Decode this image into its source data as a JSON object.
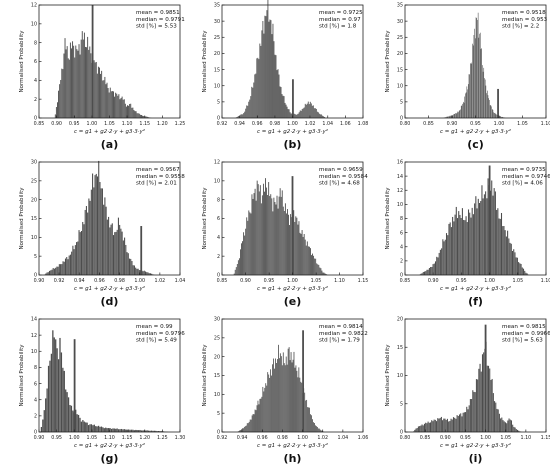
{
  "chart_data": [
    {
      "panel": "(a)",
      "type": "bar",
      "xlabel": "c = g1 + g2·2·y + g3·3·y²",
      "ylabel": "Normalised Probability",
      "xlim": [
        0.85,
        1.25
      ],
      "ylim": [
        0,
        12
      ],
      "xticks": [
        "0.85",
        "0.90",
        "0.95",
        "1.00",
        "1.05",
        "1.10",
        "1.15",
        "1.20",
        "1.25"
      ],
      "yticks": [
        "0",
        "2",
        "4",
        "6",
        "8",
        "10",
        "12"
      ],
      "stats": [
        "mean = 0.9851",
        "median = 0.9791",
        "std [%] = 5.53"
      ],
      "spike": {
        "x": 1.002,
        "y": 12
      },
      "profile": [
        [
          0.895,
          0
        ],
        [
          0.905,
          2.5
        ],
        [
          0.915,
          5
        ],
        [
          0.925,
          8
        ],
        [
          0.935,
          6.5
        ],
        [
          0.945,
          8
        ],
        [
          0.955,
          7
        ],
        [
          0.965,
          7.5
        ],
        [
          0.975,
          8.8
        ],
        [
          0.985,
          8
        ],
        [
          0.995,
          7.2
        ],
        [
          1.005,
          6.2
        ],
        [
          1.015,
          5.5
        ],
        [
          1.03,
          4.5
        ],
        [
          1.05,
          3
        ],
        [
          1.07,
          2.5
        ],
        [
          1.09,
          2
        ],
        [
          1.1,
          1.2
        ],
        [
          1.11,
          1.5
        ],
        [
          1.12,
          0.8
        ],
        [
          1.14,
          0.3
        ],
        [
          1.16,
          0.1
        ],
        [
          1.17,
          0
        ]
      ]
    },
    {
      "panel": "(b)",
      "type": "bar",
      "xlabel": "c = g1 + g2·2·y + g3·3·y²",
      "ylabel": "Normalised Probability",
      "xlim": [
        0.92,
        1.08
      ],
      "ylim": [
        0,
        35
      ],
      "xticks": [
        "0.92",
        "0.94",
        "0.96",
        "0.98",
        "1.00",
        "1.02",
        "1.04",
        "1.06",
        "1.08"
      ],
      "yticks": [
        "0",
        "5",
        "10",
        "15",
        "20",
        "25",
        "30",
        "35"
      ],
      "stats": [
        "mean = 0.9725",
        "median = 0.97",
        "std [%] = 1.8"
      ],
      "spike": {
        "x": 1.0005,
        "y": 12
      },
      "profile": [
        [
          0.935,
          0
        ],
        [
          0.945,
          1.5
        ],
        [
          0.952,
          6
        ],
        [
          0.958,
          14
        ],
        [
          0.963,
          22
        ],
        [
          0.968,
          30
        ],
        [
          0.971,
          34
        ],
        [
          0.975,
          31
        ],
        [
          0.979,
          24
        ],
        [
          0.983,
          15
        ],
        [
          0.988,
          8
        ],
        [
          0.993,
          4
        ],
        [
          0.998,
          1.5
        ],
        [
          1.005,
          1
        ],
        [
          1.012,
          3
        ],
        [
          1.018,
          5
        ],
        [
          1.023,
          4
        ],
        [
          1.03,
          1.5
        ],
        [
          1.038,
          0
        ]
      ]
    },
    {
      "panel": "(c)",
      "type": "bar",
      "xlabel": "c = g1 + g2·2·y + g3·3·y²",
      "ylabel": "Normalised Probability",
      "xlim": [
        0.8,
        1.1
      ],
      "ylim": [
        0,
        35
      ],
      "xticks": [
        "0.80",
        "0.85",
        "0.90",
        "0.95",
        "1.00",
        "1.05",
        "1.10"
      ],
      "yticks": [
        "0",
        "5",
        "10",
        "15",
        "20",
        "25",
        "30",
        "35"
      ],
      "stats": [
        "mean = 0.9518",
        "median = 0.953",
        "std [%] = 2.2"
      ],
      "spike": {
        "x": 0.998,
        "y": 9
      },
      "profile": [
        [
          0.88,
          0
        ],
        [
          0.9,
          0.8
        ],
        [
          0.915,
          2
        ],
        [
          0.925,
          5
        ],
        [
          0.935,
          11
        ],
        [
          0.943,
          20
        ],
        [
          0.95,
          29
        ],
        [
          0.955,
          31
        ],
        [
          0.96,
          25
        ],
        [
          0.965,
          17
        ],
        [
          0.972,
          10
        ],
        [
          0.98,
          5
        ],
        [
          0.988,
          2
        ],
        [
          0.995,
          1
        ],
        [
          1.005,
          0.4
        ],
        [
          1.015,
          0
        ]
      ]
    },
    {
      "panel": "(d)",
      "type": "bar",
      "xlabel": "c = g1 + g2·2·y + g3·3·y²",
      "ylabel": "Normalised Probability",
      "xlim": [
        0.9,
        1.04
      ],
      "ylim": [
        0,
        30
      ],
      "xticks": [
        "0.90",
        "0.92",
        "0.94",
        "0.96",
        "0.98",
        "1.00",
        "1.02",
        "1.04"
      ],
      "yticks": [
        "0",
        "5",
        "10",
        "15",
        "20",
        "25",
        "30"
      ],
      "stats": [
        "mean = 0.9567",
        "median = 0.9558",
        "std [%] = 2.01"
      ],
      "spike": {
        "x": 1.0015,
        "y": 13
      },
      "profile": [
        [
          0.905,
          0
        ],
        [
          0.91,
          1
        ],
        [
          0.92,
          2.5
        ],
        [
          0.93,
          5
        ],
        [
          0.938,
          9
        ],
        [
          0.944,
          14
        ],
        [
          0.95,
          20
        ],
        [
          0.955,
          26
        ],
        [
          0.958,
          28
        ],
        [
          0.962,
          24
        ],
        [
          0.966,
          18
        ],
        [
          0.97,
          14
        ],
        [
          0.975,
          11
        ],
        [
          0.98,
          14
        ],
        [
          0.984,
          10
        ],
        [
          0.988,
          6
        ],
        [
          0.993,
          3
        ],
        [
          0.998,
          1.5
        ],
        [
          1.005,
          1
        ],
        [
          1.01,
          0.5
        ],
        [
          1.015,
          0
        ]
      ]
    },
    {
      "panel": "(e)",
      "type": "bar",
      "xlabel": "c = g1 + g2·2·y + g3·3·y²",
      "ylabel": "Normalised Probability",
      "xlim": [
        0.85,
        1.15
      ],
      "ylim": [
        0,
        12
      ],
      "xticks": [
        "0.85",
        "0.90",
        "0.95",
        "1.00",
        "1.05",
        "1.10",
        "1.15"
      ],
      "yticks": [
        "0",
        "2",
        "4",
        "6",
        "8",
        "10",
        "12"
      ],
      "stats": [
        "mean = 0.9659",
        "median = 0.9584",
        "std [%] = 4.68"
      ],
      "spike": {
        "x": 1.0,
        "y": 10.5
      },
      "profile": [
        [
          0.875,
          0
        ],
        [
          0.885,
          1.5
        ],
        [
          0.895,
          4
        ],
        [
          0.905,
          6
        ],
        [
          0.915,
          8
        ],
        [
          0.925,
          9.5
        ],
        [
          0.935,
          8.5
        ],
        [
          0.945,
          9.8
        ],
        [
          0.955,
          8
        ],
        [
          0.965,
          7.5
        ],
        [
          0.975,
          8.8
        ],
        [
          0.985,
          7
        ],
        [
          0.995,
          6
        ],
        [
          1.005,
          6.5
        ],
        [
          1.015,
          5
        ],
        [
          1.025,
          4
        ],
        [
          1.035,
          3
        ],
        [
          1.05,
          1.5
        ],
        [
          1.065,
          0.3
        ],
        [
          1.075,
          0
        ]
      ]
    },
    {
      "panel": "(f)",
      "type": "bar",
      "xlabel": "c = g1 + g2·2·y + g3·3·y²",
      "ylabel": "Normalised Probability",
      "xlim": [
        0.85,
        1.1
      ],
      "ylim": [
        0,
        16
      ],
      "xticks": [
        "0.85",
        "0.90",
        "0.95",
        "1.00",
        "1.05",
        "1.10"
      ],
      "yticks": [
        "0",
        "2",
        "4",
        "6",
        "8",
        "10",
        "12",
        "14",
        "16"
      ],
      "stats": [
        "mean = 0.9735",
        "median = 0.9746",
        "std [%] = 4.06"
      ],
      "spike": {
        "x": 1.0,
        "y": 15.5
      },
      "profile": [
        [
          0.875,
          0
        ],
        [
          0.885,
          0.5
        ],
        [
          0.895,
          1
        ],
        [
          0.905,
          2
        ],
        [
          0.915,
          4
        ],
        [
          0.925,
          6
        ],
        [
          0.935,
          8
        ],
        [
          0.945,
          9
        ],
        [
          0.955,
          8
        ],
        [
          0.965,
          8.5
        ],
        [
          0.975,
          10
        ],
        [
          0.985,
          11
        ],
        [
          0.995,
          12
        ],
        [
          1.005,
          13
        ],
        [
          1.015,
          9
        ],
        [
          1.025,
          7
        ],
        [
          1.035,
          5
        ],
        [
          1.045,
          3
        ],
        [
          1.055,
          1.5
        ],
        [
          1.065,
          0.3
        ],
        [
          1.07,
          0
        ]
      ]
    },
    {
      "panel": "(g)",
      "type": "bar",
      "xlabel": "c = g1 + g2·2·y + g3·3·y²",
      "ylabel": "Normalised Probability",
      "xlim": [
        0.9,
        1.3
      ],
      "ylim": [
        0,
        14
      ],
      "xticks": [
        "0.90",
        "0.95",
        "1.00",
        "1.05",
        "1.10",
        "1.15",
        "1.20",
        "1.25",
        "1.30"
      ],
      "yticks": [
        "0",
        "2",
        "4",
        "6",
        "8",
        "10",
        "12",
        "14"
      ],
      "stats": [
        "mean = 0.99",
        "median = 0.9796",
        "std [%] = 5.49"
      ],
      "spike": {
        "x": 1.001,
        "y": 11.5
      },
      "profile": [
        [
          0.905,
          0
        ],
        [
          0.912,
          2
        ],
        [
          0.92,
          4
        ],
        [
          0.928,
          8
        ],
        [
          0.936,
          11
        ],
        [
          0.944,
          12
        ],
        [
          0.952,
          10
        ],
        [
          0.96,
          11
        ],
        [
          0.968,
          8
        ],
        [
          0.976,
          6
        ],
        [
          0.984,
          4
        ],
        [
          0.992,
          3
        ],
        [
          1.005,
          2.5
        ],
        [
          1.02,
          1.5
        ],
        [
          1.04,
          1
        ],
        [
          1.06,
          0.8
        ],
        [
          1.09,
          0.5
        ],
        [
          1.12,
          0.4
        ],
        [
          1.15,
          0.3
        ],
        [
          1.2,
          0.2
        ],
        [
          1.25,
          0.1
        ],
        [
          1.27,
          0
        ]
      ]
    },
    {
      "panel": "(h)",
      "type": "bar",
      "xlabel": "c = g1 + g2·2·y + g3·3·y²",
      "ylabel": "Normalised Probability",
      "xlim": [
        0.92,
        1.06
      ],
      "ylim": [
        0,
        30
      ],
      "xticks": [
        "0.92",
        "0.94",
        "0.96",
        "0.98",
        "1.00",
        "1.02",
        "1.04",
        "1.06"
      ],
      "yticks": [
        "0",
        "5",
        "10",
        "15",
        "20",
        "25",
        "30"
      ],
      "stats": [
        "mean = 0.9814",
        "median = 0.9822",
        "std [%] = 1.79"
      ],
      "spike": {
        "x": 1.0005,
        "y": 27
      },
      "profile": [
        [
          0.935,
          0
        ],
        [
          0.94,
          0.8
        ],
        [
          0.945,
          2
        ],
        [
          0.95,
          4
        ],
        [
          0.955,
          7
        ],
        [
          0.96,
          10
        ],
        [
          0.965,
          14
        ],
        [
          0.97,
          17
        ],
        [
          0.975,
          20
        ],
        [
          0.978,
          21
        ],
        [
          0.982,
          18
        ],
        [
          0.986,
          21
        ],
        [
          0.99,
          20
        ],
        [
          0.994,
          17
        ],
        [
          0.998,
          14
        ],
        [
          1.003,
          9
        ],
        [
          1.008,
          5
        ],
        [
          1.012,
          2
        ],
        [
          1.018,
          0.5
        ],
        [
          1.022,
          0
        ]
      ]
    },
    {
      "panel": "(i)",
      "type": "bar",
      "xlabel": "c = g1 + g2·2·y + g3·3·y²",
      "ylabel": "Normalised Probability",
      "xlim": [
        0.8,
        1.15
      ],
      "ylim": [
        0,
        20
      ],
      "xticks": [
        "0.80",
        "0.85",
        "0.90",
        "0.95",
        "1.00",
        "1.05",
        "1.10",
        "1.15"
      ],
      "yticks": [
        "0",
        "5",
        "10",
        "15",
        "20"
      ],
      "stats": [
        "mean = 0.9815",
        "median = 0.9966",
        "std [%] = 5.63"
      ],
      "spike": {
        "x": 1.0,
        "y": 19
      },
      "profile": [
        [
          0.82,
          0
        ],
        [
          0.83,
          0.8
        ],
        [
          0.85,
          1.5
        ],
        [
          0.87,
          2
        ],
        [
          0.89,
          2.5
        ],
        [
          0.91,
          2
        ],
        [
          0.93,
          2.8
        ],
        [
          0.95,
          3.5
        ],
        [
          0.96,
          5
        ],
        [
          0.975,
          8
        ],
        [
          0.985,
          11
        ],
        [
          0.995,
          14
        ],
        [
          1.0,
          15
        ],
        [
          1.005,
          13
        ],
        [
          1.015,
          9
        ],
        [
          1.025,
          5
        ],
        [
          1.035,
          3
        ],
        [
          1.05,
          1.5
        ],
        [
          1.06,
          2.5
        ],
        [
          1.07,
          1
        ],
        [
          1.08,
          0.3
        ],
        [
          1.09,
          0
        ]
      ]
    }
  ],
  "colors": {
    "bar": "#4d4d4d",
    "axis": "#222222",
    "background": "#ffffff"
  }
}
